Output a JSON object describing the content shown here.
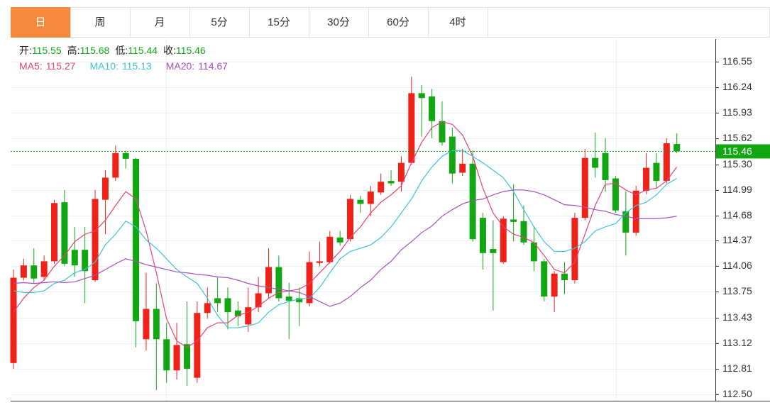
{
  "chart_data": {
    "type": "candlestick",
    "tabs": [
      "日",
      "周",
      "月",
      "5分",
      "15分",
      "30分",
      "60分",
      "4时"
    ],
    "active_tab": "日",
    "ohlc": [
      {
        "label": "开:",
        "value": 115.55
      },
      {
        "label": "高:",
        "value": 115.68
      },
      {
        "label": "低:",
        "value": 115.44
      },
      {
        "label": "收:",
        "value": 115.46
      }
    ],
    "up_color": "#ee2218",
    "down_color": "#12a712",
    "info_value_color": "#12a712",
    "last_price": 115.46,
    "ylim": [
      112.42,
      116.83
    ],
    "yticks": [
      116.55,
      116.24,
      115.93,
      115.62,
      {
        "value": 115.3,
        "label": "115.30"
      },
      114.99,
      114.68,
      114.37,
      114.06,
      113.75,
      113.43,
      113.12,
      112.81,
      {
        "value": 112.5,
        "label": "112.50"
      }
    ],
    "grid": true,
    "open": [
      112.88,
      113.92,
      114.07,
      113.93,
      114.12,
      114.84,
      114.26,
      114.26,
      113.89,
      114.87,
      115.14,
      115.44,
      115.37,
      113.17,
      113.54,
      113.17,
      112.79,
      113.11,
      112.7,
      113.49,
      113.67,
      113.67,
      113.52,
      113.35,
      113.56,
      113.73,
      114.05,
      113.69,
      113.67,
      113.61,
      114.1,
      114.11,
      114.41,
      114.39,
      114.87,
      114.82,
      114.96,
      115.1,
      115.09,
      115.32,
      116.17,
      116.13,
      115.83,
      115.64,
      115.2,
      115.31,
      114.65,
      114.27,
      114.11,
      114.63,
      114.61,
      114.35,
      114.12,
      113.69,
      113.97,
      113.89,
      114.65,
      115.38,
      115.44,
      115.13,
      114.73,
      114.47,
      114.98,
      115.32,
      115.1,
      115.55
    ],
    "high": [
      114.02,
      114.15,
      114.28,
      114.19,
      114.87,
      114.99,
      114.54,
      114.54,
      114.99,
      115.23,
      115.53,
      115.47,
      115.38,
      113.98,
      113.85,
      113.37,
      113.37,
      113.63,
      113.63,
      113.8,
      113.93,
      113.8,
      113.63,
      113.8,
      113.93,
      114.28,
      114.19,
      113.86,
      113.8,
      114.24,
      114.36,
      114.49,
      114.49,
      114.93,
      114.92,
      115.04,
      115.19,
      115.23,
      115.4,
      116.37,
      116.27,
      116.22,
      116.07,
      115.75,
      115.49,
      115.47,
      114.71,
      114.62,
      114.67,
      115.06,
      114.8,
      114.55,
      114.15,
      114.0,
      114.11,
      114.71,
      115.49,
      115.69,
      115.62,
      115.16,
      114.97,
      115.04,
      115.44,
      115.44,
      115.62,
      115.68
    ],
    "low": [
      112.81,
      113.89,
      113.85,
      113.89,
      114.09,
      114.06,
      113.93,
      113.61,
      113.87,
      114.45,
      115.1,
      115.25,
      113.07,
      113.03,
      112.55,
      112.64,
      112.68,
      112.6,
      112.64,
      113.42,
      113.5,
      113.29,
      113.33,
      113.26,
      113.5,
      113.67,
      113.63,
      113.17,
      113.33,
      113.57,
      114.06,
      114.09,
      114.31,
      114.36,
      114.71,
      114.67,
      114.93,
      115.04,
      114.97,
      115.3,
      115.64,
      115.62,
      115.53,
      115.07,
      115.16,
      114.36,
      114.02,
      113.52,
      114.09,
      114.36,
      114.32,
      114.0,
      113.63,
      113.5,
      113.72,
      113.85,
      114.62,
      115.14,
      114.97,
      114.71,
      114.19,
      114.43,
      114.94,
      115.01,
      115.07,
      115.44
    ],
    "close": [
      113.92,
      114.07,
      113.91,
      114.12,
      114.83,
      114.09,
      114.07,
      114.0,
      114.88,
      115.14,
      115.44,
      115.37,
      113.39,
      113.54,
      113.17,
      112.79,
      113.1,
      112.81,
      113.49,
      113.61,
      113.61,
      113.5,
      113.45,
      113.56,
      113.73,
      114.05,
      113.67,
      113.64,
      113.62,
      114.11,
      114.12,
      114.42,
      114.35,
      114.88,
      114.82,
      114.97,
      115.09,
      115.07,
      115.32,
      116.17,
      116.11,
      115.83,
      115.57,
      115.19,
      115.31,
      114.39,
      114.22,
      114.22,
      114.64,
      114.6,
      114.35,
      114.12,
      113.69,
      113.97,
      113.89,
      114.65,
      115.38,
      115.26,
      115.11,
      114.74,
      114.47,
      114.98,
      115.26,
      115.1,
      115.56,
      115.46
    ],
    "series": [
      {
        "label": "MA5:",
        "value": 115.27,
        "color": "#e0457b",
        "values": [
          113.5,
          113.67,
          113.8,
          113.89,
          114.06,
          114.19,
          114.36,
          114.45,
          114.49,
          114.62,
          114.8,
          114.97,
          114.88,
          114.49,
          113.98,
          113.42,
          113.15,
          113.07,
          113.15,
          113.31,
          113.37,
          113.37,
          113.46,
          113.5,
          113.57,
          113.67,
          113.74,
          113.76,
          113.78,
          113.85,
          113.98,
          114.11,
          114.24,
          114.41,
          114.54,
          114.71,
          114.84,
          114.93,
          115.04,
          115.32,
          115.57,
          115.75,
          115.82,
          115.79,
          115.66,
          115.4,
          115.01,
          114.71,
          114.54,
          114.45,
          114.41,
          114.35,
          114.19,
          114.02,
          113.98,
          114.11,
          114.45,
          114.8,
          115.06,
          115.07,
          114.99,
          114.93,
          114.99,
          115.01,
          115.1,
          115.27
        ]
      },
      {
        "label": "MA10:",
        "value": 115.13,
        "color": "#3ec3d6",
        "values": [
          113.76,
          113.74,
          113.74,
          113.76,
          113.85,
          113.89,
          113.98,
          114.02,
          114.11,
          114.32,
          114.45,
          114.61,
          114.54,
          114.38,
          114.28,
          114.15,
          114.02,
          113.93,
          113.85,
          113.67,
          113.46,
          113.31,
          113.31,
          113.33,
          113.37,
          113.5,
          113.59,
          113.63,
          113.66,
          113.67,
          113.8,
          113.98,
          114.15,
          114.24,
          114.28,
          114.32,
          114.41,
          114.54,
          114.71,
          114.88,
          115.1,
          115.27,
          115.4,
          115.47,
          115.47,
          115.4,
          115.32,
          115.23,
          115.14,
          114.97,
          114.75,
          114.54,
          114.36,
          114.24,
          114.24,
          114.28,
          114.36,
          114.49,
          114.54,
          114.58,
          114.71,
          114.8,
          114.84,
          114.93,
          115.06,
          115.13
        ]
      },
      {
        "label": "MA20:",
        "value": 114.67,
        "color": "#a550be",
        "values": [
          113.85,
          113.86,
          113.85,
          113.86,
          113.87,
          113.86,
          113.87,
          113.91,
          113.95,
          114.02,
          114.09,
          114.15,
          114.12,
          114.08,
          114.05,
          114.02,
          113.99,
          113.98,
          113.96,
          113.95,
          113.93,
          113.92,
          113.89,
          113.85,
          113.82,
          113.8,
          113.78,
          113.76,
          113.74,
          113.69,
          113.63,
          113.57,
          113.61,
          113.69,
          113.8,
          113.89,
          114.02,
          114.12,
          114.26,
          114.36,
          114.47,
          114.55,
          114.67,
          114.75,
          114.82,
          114.86,
          114.88,
          114.93,
          114.97,
          114.99,
          114.99,
          114.97,
          114.93,
          114.87,
          114.81,
          114.8,
          114.78,
          114.75,
          114.73,
          114.69,
          114.67,
          114.64,
          114.64,
          114.64,
          114.65,
          114.67
        ]
      }
    ]
  }
}
